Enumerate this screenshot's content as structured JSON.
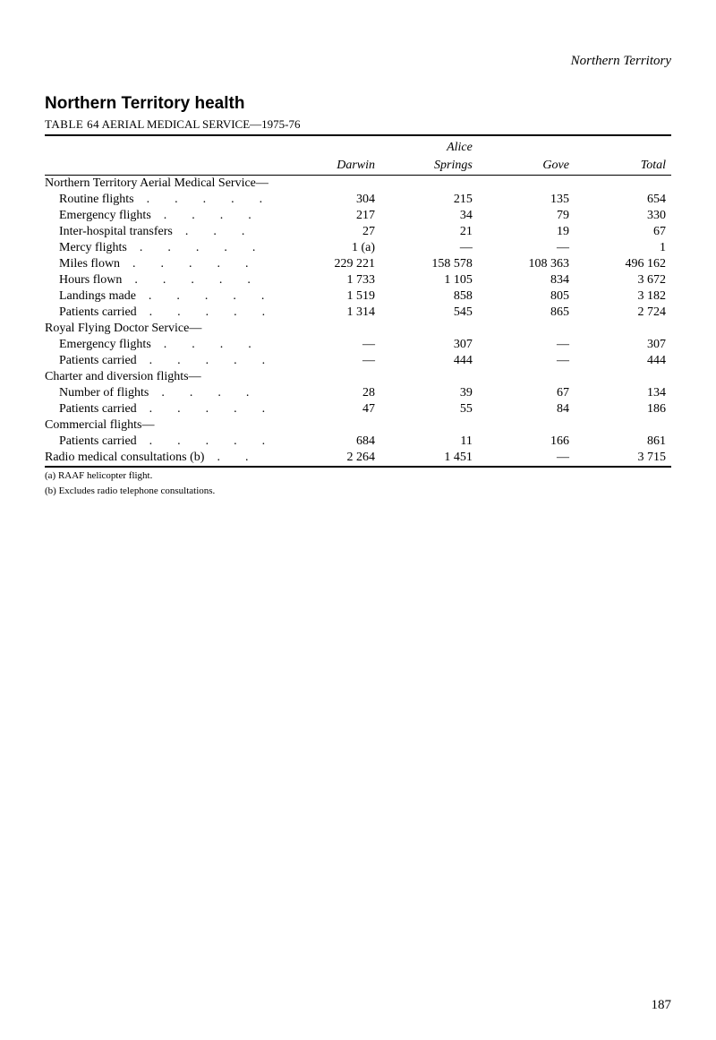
{
  "top_header": "Northern Territory",
  "section_title": "Northern Territory health",
  "table_label_prefix": "TABLE 64",
  "table_label_rest": "   AERIAL MEDICAL SERVICE—1975-76",
  "columns": {
    "stub": "",
    "darwin": "Darwin",
    "alice_line1": "Alice",
    "alice_line2": "Springs",
    "gove": "Gove",
    "total": "Total"
  },
  "groups": [
    {
      "label": "Northern Territory Aerial Medical Service—",
      "rows": [
        {
          "label": "Routine flights",
          "dots": 5,
          "darwin": "304",
          "alice": "215",
          "gove": "135",
          "total": "654"
        },
        {
          "label": "Emergency flights",
          "dots": 4,
          "darwin": "217",
          "alice": "34",
          "gove": "79",
          "total": "330"
        },
        {
          "label": "Inter-hospital transfers",
          "dots": 3,
          "darwin": "27",
          "alice": "21",
          "gove": "19",
          "total": "67"
        },
        {
          "label": "Mercy flights",
          "dots": 5,
          "darwin": "1 (a)",
          "alice": "—",
          "gove": "—",
          "total": "1"
        },
        {
          "label": "Miles flown",
          "dots": 5,
          "darwin": "229 221",
          "alice": "158 578",
          "gove": "108 363",
          "total": "496 162"
        },
        {
          "label": "Hours flown",
          "dots": 5,
          "darwin": "1 733",
          "alice": "1 105",
          "gove": "834",
          "total": "3 672"
        },
        {
          "label": "Landings made",
          "dots": 5,
          "darwin": "1 519",
          "alice": "858",
          "gove": "805",
          "total": "3 182"
        },
        {
          "label": "Patients carried",
          "dots": 5,
          "darwin": "1 314",
          "alice": "545",
          "gove": "865",
          "total": "2 724"
        }
      ]
    },
    {
      "label": "Royal Flying Doctor Service—",
      "rows": [
        {
          "label": "Emergency flights",
          "dots": 4,
          "darwin": "—",
          "alice": "307",
          "gove": "—",
          "total": "307"
        },
        {
          "label": "Patients carried",
          "dots": 5,
          "darwin": "—",
          "alice": "444",
          "gove": "—",
          "total": "444"
        }
      ]
    },
    {
      "label": "Charter and diversion flights—",
      "rows": [
        {
          "label": "Number of flights",
          "dots": 4,
          "darwin": "28",
          "alice": "39",
          "gove": "67",
          "total": "134"
        },
        {
          "label": "Patients carried",
          "dots": 5,
          "darwin": "47",
          "alice": "55",
          "gove": "84",
          "total": "186"
        }
      ]
    },
    {
      "label": "Commercial flights—",
      "rows": [
        {
          "label": "Patients carried",
          "dots": 5,
          "darwin": "684",
          "alice": "11",
          "gove": "166",
          "total": "861"
        }
      ]
    }
  ],
  "last_row": {
    "label": "Radio medical consultations (b)",
    "dots": 2,
    "darwin": "2 264",
    "alice": "1 451",
    "gove": "—",
    "total": "3 715"
  },
  "footnotes": [
    "(a) RAAF helicopter flight.",
    "(b) Excludes radio telephone consultations."
  ],
  "page_number": "187",
  "dot_string": "   .   .   .   .   .   ."
}
